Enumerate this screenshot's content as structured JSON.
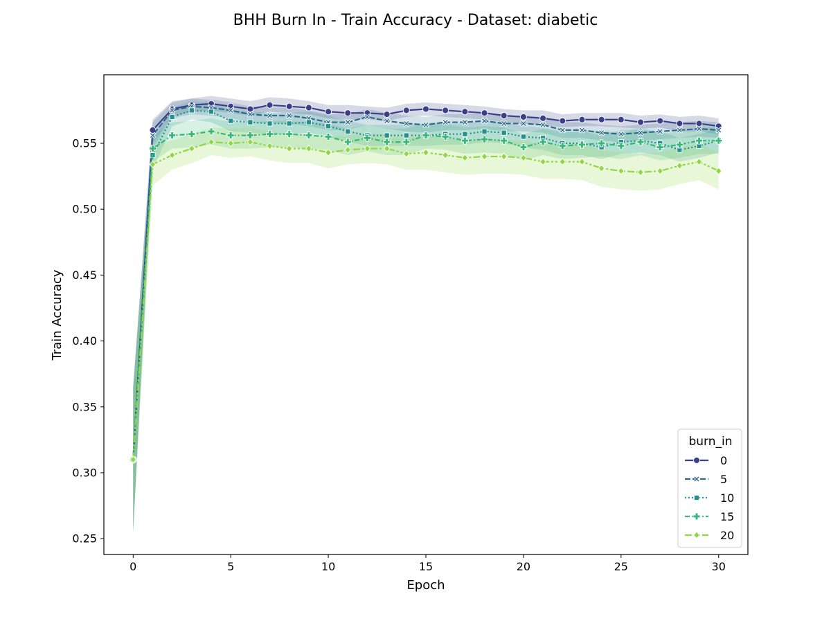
{
  "chart_data": {
    "type": "line",
    "title": "BHH Burn In - Train Accuracy - Dataset: diabetic",
    "xlabel": "Epoch",
    "ylabel": "Train Accuracy",
    "xlim": [
      -1.5,
      31.5
    ],
    "ylim": [
      0.238,
      0.602
    ],
    "xticks": [
      0,
      5,
      10,
      15,
      20,
      25,
      30
    ],
    "xtick_labels": [
      "0",
      "5",
      "10",
      "15",
      "20",
      "25",
      "30"
    ],
    "yticks": [
      0.25,
      0.3,
      0.35,
      0.4,
      0.45,
      0.5,
      0.55
    ],
    "ytick_labels": [
      "0.25",
      "0.30",
      "0.35",
      "0.40",
      "0.45",
      "0.50",
      "0.55"
    ],
    "grid": false,
    "legend": {
      "title": "burn_in",
      "position": "lower-right"
    },
    "x": [
      0,
      1,
      2,
      3,
      4,
      5,
      6,
      7,
      8,
      9,
      10,
      11,
      12,
      13,
      14,
      15,
      16,
      17,
      18,
      19,
      20,
      21,
      22,
      23,
      24,
      25,
      26,
      27,
      28,
      29,
      30
    ],
    "series": [
      {
        "name": "0",
        "color": "#3b3f88",
        "dash": "solid",
        "marker": "circle",
        "values": [
          0.31,
          0.56,
          0.576,
          0.579,
          0.58,
          0.578,
          0.576,
          0.579,
          0.578,
          0.577,
          0.574,
          0.573,
          0.573,
          0.572,
          0.575,
          0.576,
          0.575,
          0.574,
          0.573,
          0.571,
          0.57,
          0.569,
          0.567,
          0.568,
          0.568,
          0.568,
          0.566,
          0.567,
          0.565,
          0.565,
          0.563
        ],
        "lower": [
          0.255,
          0.55,
          0.57,
          0.574,
          0.575,
          0.573,
          0.571,
          0.574,
          0.573,
          0.572,
          0.569,
          0.568,
          0.568,
          0.567,
          0.57,
          0.571,
          0.57,
          0.569,
          0.568,
          0.566,
          0.565,
          0.564,
          0.562,
          0.563,
          0.563,
          0.562,
          0.561,
          0.562,
          0.559,
          0.559,
          0.557
        ],
        "upper": [
          0.365,
          0.568,
          0.582,
          0.584,
          0.586,
          0.584,
          0.582,
          0.585,
          0.584,
          0.582,
          0.579,
          0.579,
          0.578,
          0.577,
          0.58,
          0.581,
          0.58,
          0.579,
          0.578,
          0.576,
          0.575,
          0.575,
          0.572,
          0.573,
          0.573,
          0.573,
          0.571,
          0.572,
          0.57,
          0.571,
          0.569
        ]
      },
      {
        "name": "5",
        "color": "#2c6a8c",
        "dash": "dashed",
        "marker": "x",
        "values": [
          0.31,
          0.556,
          0.575,
          0.578,
          0.577,
          0.575,
          0.572,
          0.571,
          0.571,
          0.569,
          0.566,
          0.566,
          0.57,
          0.567,
          0.565,
          0.564,
          0.566,
          0.566,
          0.567,
          0.565,
          0.565,
          0.564,
          0.56,
          0.56,
          0.558,
          0.557,
          0.558,
          0.559,
          0.56,
          0.561,
          0.56
        ],
        "lower": [
          0.255,
          0.546,
          0.569,
          0.572,
          0.571,
          0.569,
          0.566,
          0.565,
          0.565,
          0.563,
          0.56,
          0.56,
          0.564,
          0.561,
          0.559,
          0.558,
          0.56,
          0.56,
          0.561,
          0.559,
          0.559,
          0.558,
          0.554,
          0.554,
          0.552,
          0.551,
          0.552,
          0.553,
          0.554,
          0.555,
          0.554
        ],
        "upper": [
          0.365,
          0.566,
          0.581,
          0.584,
          0.583,
          0.581,
          0.578,
          0.577,
          0.577,
          0.575,
          0.572,
          0.572,
          0.576,
          0.573,
          0.571,
          0.57,
          0.572,
          0.572,
          0.573,
          0.571,
          0.571,
          0.57,
          0.566,
          0.566,
          0.564,
          0.563,
          0.564,
          0.565,
          0.566,
          0.567,
          0.566
        ]
      },
      {
        "name": "10",
        "color": "#22908c",
        "dash": "dotted",
        "marker": "square",
        "values": [
          0.31,
          0.541,
          0.57,
          0.575,
          0.574,
          0.567,
          0.566,
          0.565,
          0.565,
          0.566,
          0.563,
          0.559,
          0.556,
          0.556,
          0.556,
          0.556,
          0.557,
          0.557,
          0.559,
          0.558,
          0.555,
          0.554,
          0.55,
          0.55,
          0.547,
          0.551,
          0.552,
          0.55,
          0.545,
          0.548,
          0.552
        ],
        "lower": [
          0.255,
          0.53,
          0.563,
          0.568,
          0.566,
          0.559,
          0.558,
          0.557,
          0.557,
          0.558,
          0.555,
          0.551,
          0.548,
          0.548,
          0.548,
          0.548,
          0.549,
          0.549,
          0.551,
          0.55,
          0.547,
          0.545,
          0.541,
          0.541,
          0.538,
          0.542,
          0.543,
          0.541,
          0.536,
          0.539,
          0.543
        ],
        "upper": [
          0.365,
          0.552,
          0.577,
          0.582,
          0.581,
          0.575,
          0.574,
          0.573,
          0.573,
          0.574,
          0.571,
          0.567,
          0.564,
          0.564,
          0.564,
          0.564,
          0.565,
          0.565,
          0.567,
          0.566,
          0.563,
          0.562,
          0.559,
          0.559,
          0.556,
          0.56,
          0.561,
          0.559,
          0.554,
          0.557,
          0.561
        ]
      },
      {
        "name": "15",
        "color": "#35b779",
        "dash": "dashdot",
        "marker": "plus",
        "values": [
          0.31,
          0.546,
          0.556,
          0.557,
          0.559,
          0.556,
          0.556,
          0.557,
          0.557,
          0.556,
          0.555,
          0.551,
          0.554,
          0.551,
          0.551,
          0.556,
          0.555,
          0.552,
          0.553,
          0.552,
          0.547,
          0.551,
          0.548,
          0.549,
          0.55,
          0.548,
          0.551,
          0.547,
          0.549,
          0.552,
          0.552
        ],
        "lower": [
          0.255,
          0.536,
          0.546,
          0.547,
          0.549,
          0.546,
          0.546,
          0.547,
          0.547,
          0.546,
          0.545,
          0.541,
          0.544,
          0.541,
          0.541,
          0.546,
          0.545,
          0.542,
          0.543,
          0.542,
          0.537,
          0.541,
          0.538,
          0.539,
          0.54,
          0.538,
          0.541,
          0.537,
          0.539,
          0.542,
          0.542
        ],
        "upper": [
          0.365,
          0.556,
          0.566,
          0.567,
          0.569,
          0.566,
          0.566,
          0.567,
          0.567,
          0.566,
          0.565,
          0.561,
          0.564,
          0.561,
          0.561,
          0.566,
          0.565,
          0.562,
          0.563,
          0.562,
          0.557,
          0.561,
          0.558,
          0.559,
          0.56,
          0.558,
          0.561,
          0.557,
          0.559,
          0.562,
          0.562
        ]
      },
      {
        "name": "20",
        "color": "#90d743",
        "dash": "dashdot2",
        "marker": "diamond",
        "values": [
          0.31,
          0.534,
          0.541,
          0.546,
          0.551,
          0.55,
          0.551,
          0.548,
          0.546,
          0.546,
          0.543,
          0.545,
          0.546,
          0.546,
          0.542,
          0.543,
          0.541,
          0.539,
          0.54,
          0.54,
          0.539,
          0.536,
          0.536,
          0.536,
          0.531,
          0.529,
          0.528,
          0.529,
          0.533,
          0.536,
          0.529
        ],
        "lower": [
          0.258,
          0.518,
          0.53,
          0.535,
          0.541,
          0.539,
          0.54,
          0.537,
          0.535,
          0.535,
          0.531,
          0.534,
          0.535,
          0.534,
          0.53,
          0.53,
          0.528,
          0.526,
          0.527,
          0.527,
          0.526,
          0.523,
          0.523,
          0.522,
          0.517,
          0.515,
          0.514,
          0.515,
          0.519,
          0.522,
          0.515
        ],
        "upper": [
          0.362,
          0.549,
          0.552,
          0.557,
          0.562,
          0.561,
          0.562,
          0.559,
          0.557,
          0.557,
          0.555,
          0.556,
          0.557,
          0.557,
          0.554,
          0.556,
          0.554,
          0.552,
          0.553,
          0.553,
          0.552,
          0.549,
          0.549,
          0.55,
          0.545,
          0.543,
          0.542,
          0.543,
          0.547,
          0.55,
          0.543
        ]
      }
    ]
  }
}
